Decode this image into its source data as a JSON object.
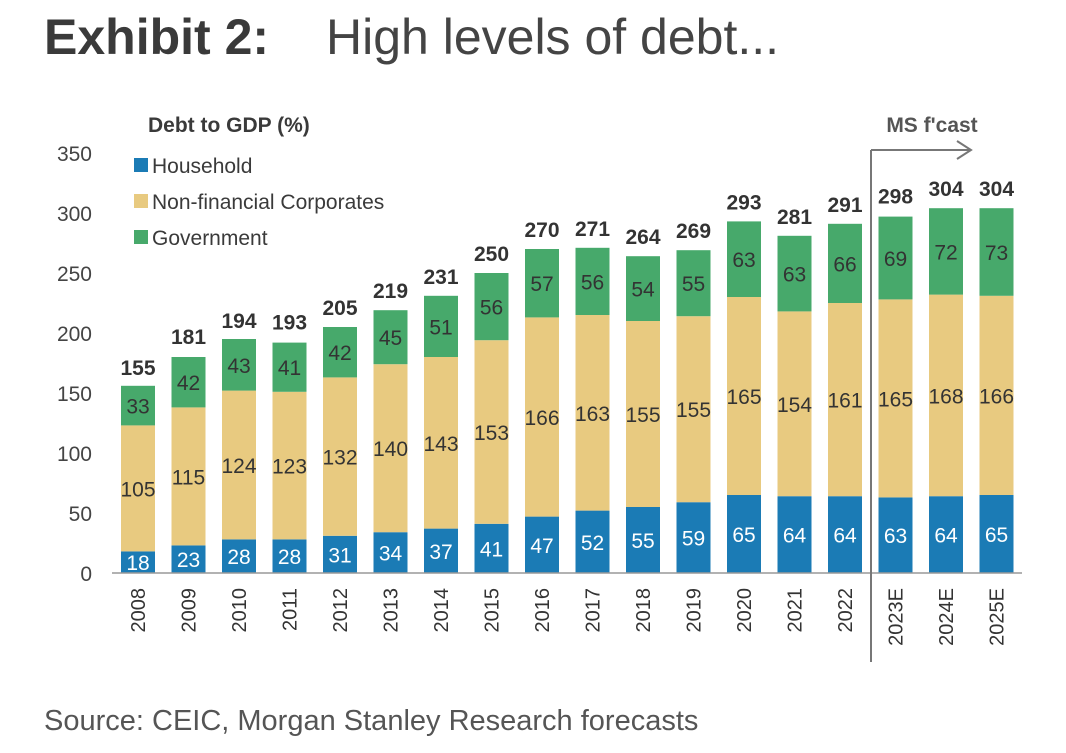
{
  "header": {
    "exhibit": "Exhibit 2:",
    "title": "High levels of debt..."
  },
  "source": "Source: CEIC, Morgan Stanley Research forecasts",
  "colors": {
    "household": "#1b7bb5",
    "corporates": "#e8ca80",
    "government": "#47a96b",
    "text": "#333333"
  },
  "chart_data": {
    "type": "bar",
    "stacked": true,
    "title": "Debt to GDP (%)",
    "xlabel": "",
    "ylabel": "Debt to GDP (%)",
    "ylim": [
      0,
      350
    ],
    "yticks": [
      "0",
      "50",
      "100",
      "150",
      "200",
      "250",
      "300",
      "350"
    ],
    "categories": [
      "2008",
      "2009",
      "2010",
      "2011",
      "2012",
      "2013",
      "2014",
      "2015",
      "2016",
      "2017",
      "2018",
      "2019",
      "2020",
      "2021",
      "2022",
      "2023E",
      "2024E",
      "2025E"
    ],
    "series": [
      {
        "name": "Household",
        "values": [
          18,
          23,
          28,
          28,
          31,
          34,
          37,
          41,
          47,
          52,
          55,
          59,
          65,
          64,
          64,
          63,
          64,
          65
        ]
      },
      {
        "name": "Non-financial Corporates",
        "values": [
          105,
          115,
          124,
          123,
          132,
          140,
          143,
          153,
          166,
          163,
          155,
          155,
          165,
          154,
          161,
          165,
          168,
          166
        ]
      },
      {
        "name": "Government",
        "values": [
          33,
          42,
          43,
          41,
          42,
          45,
          51,
          56,
          57,
          56,
          54,
          55,
          63,
          63,
          66,
          69,
          72,
          73
        ]
      }
    ],
    "totals": [
      155,
      181,
      194,
      193,
      205,
      219,
      231,
      250,
      270,
      271,
      264,
      269,
      293,
      281,
      291,
      298,
      304,
      304
    ],
    "annotation": "MS f'cast",
    "legend_position": "top-left",
    "grid": false
  }
}
